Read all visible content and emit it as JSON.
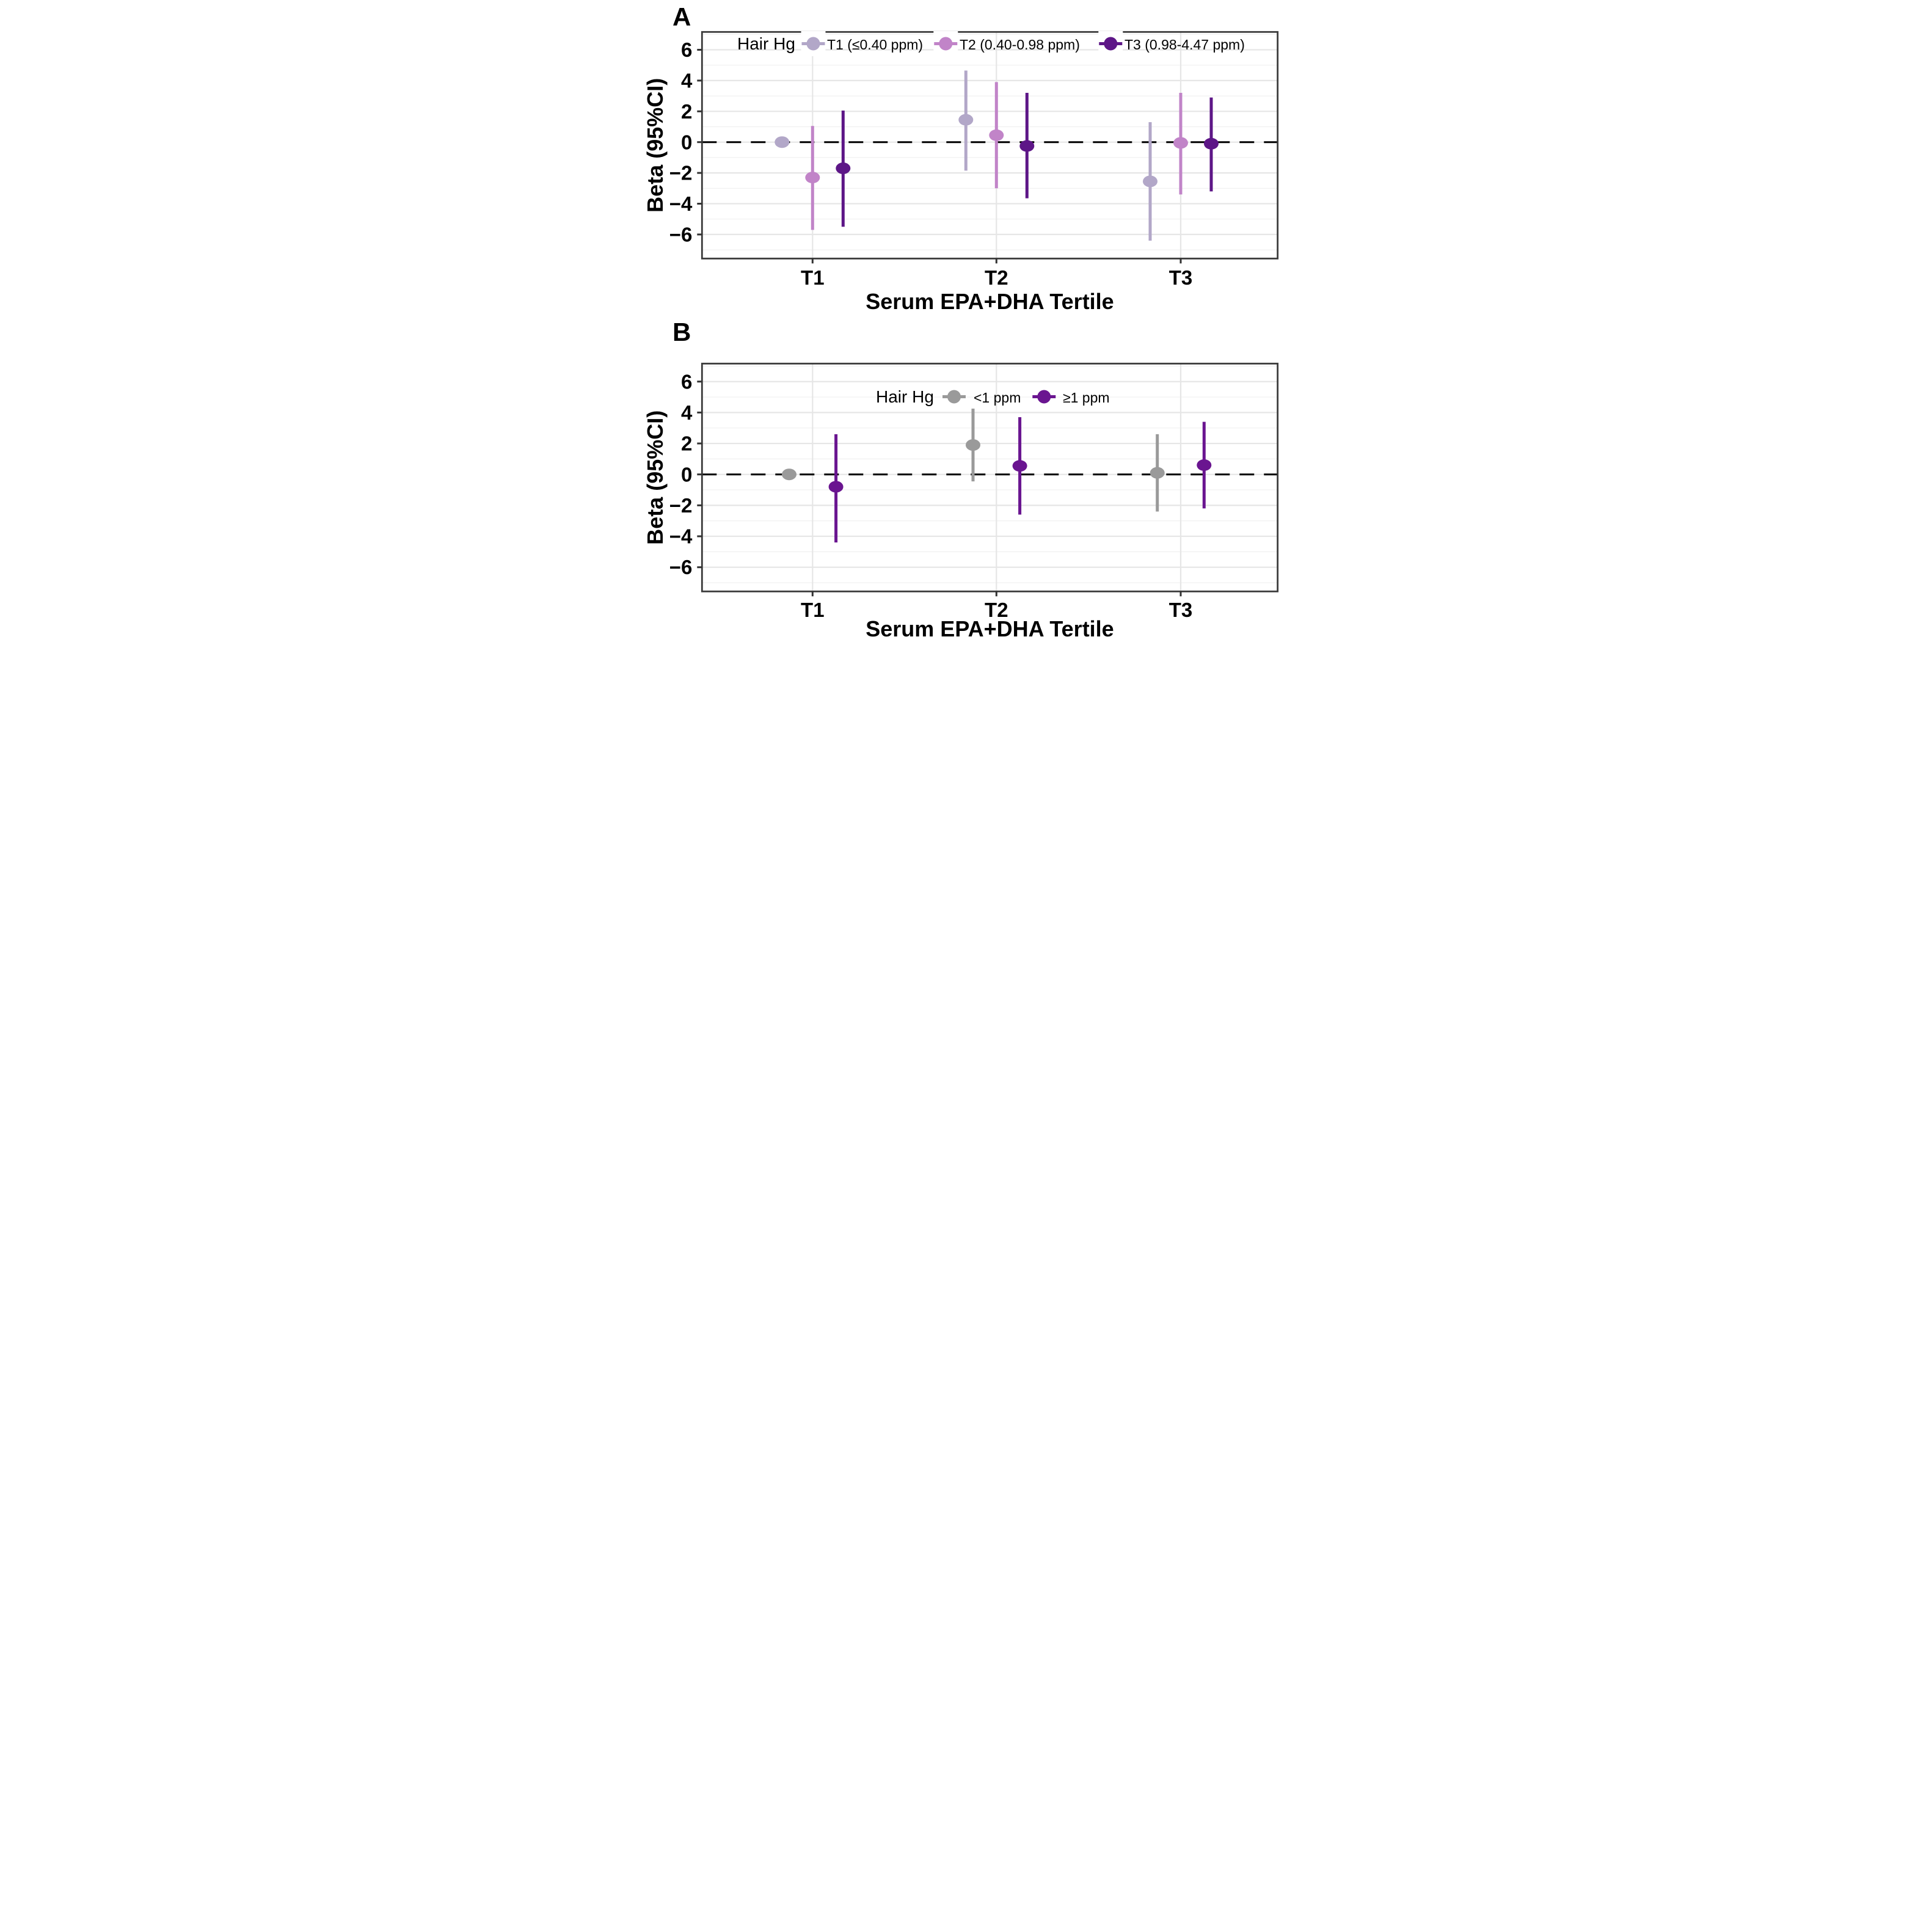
{
  "figure": {
    "description": "Two-panel forest plot of beta coefficients with 95% confidence intervals by serum EPA+DHA tertile and hair mercury category",
    "background": "#ffffff",
    "panel_border_color": "#3b3b3b",
    "grid_color_major": "#e6e6e6",
    "grid_color_minor": "#f0f0f0",
    "zero_line_color": "#000000"
  },
  "chart_data": [
    {
      "type": "scatter",
      "variant": "pointrange-forest",
      "panel_label": "A",
      "legend_title": "Hair Hg",
      "xlabel": "Serum EPA+DHA Tertile",
      "ylabel": "Beta (95%CI)",
      "categories": [
        "T1",
        "T2",
        "T3"
      ],
      "yticks": [
        6,
        4,
        2,
        0,
        -2,
        -4,
        -6
      ],
      "ylim": [
        -7.56,
        7.16
      ],
      "refline": 0,
      "grid": true,
      "legend_position": "top-inside",
      "series": [
        {
          "name": "T1 (≤0.40 ppm)",
          "color": "#b2a7c8",
          "points": [
            {
              "x": "T1",
              "beta": 0.0,
              "lo": null,
              "hi": null
            },
            {
              "x": "T2",
              "beta": 1.45,
              "lo": -1.85,
              "hi": 4.65
            },
            {
              "x": "T3",
              "beta": -2.55,
              "lo": -6.4,
              "hi": 1.3
            }
          ]
        },
        {
          "name": "T2 (0.40-0.98 ppm)",
          "color": "#c184c8",
          "points": [
            {
              "x": "T1",
              "beta": -2.3,
              "lo": -5.7,
              "hi": 1.05
            },
            {
              "x": "T2",
              "beta": 0.45,
              "lo": -3.0,
              "hi": 3.9
            },
            {
              "x": "T3",
              "beta": -0.05,
              "lo": -3.4,
              "hi": 3.2
            }
          ]
        },
        {
          "name": "T3 (0.98-4.47 ppm)",
          "color": "#5d1687",
          "points": [
            {
              "x": "T1",
              "beta": -1.7,
              "lo": -5.5,
              "hi": 2.05
            },
            {
              "x": "T2",
              "beta": -0.25,
              "lo": -3.65,
              "hi": 3.2
            },
            {
              "x": "T3",
              "beta": -0.1,
              "lo": -3.2,
              "hi": 2.9
            }
          ]
        }
      ]
    },
    {
      "type": "scatter",
      "variant": "pointrange-forest",
      "panel_label": "B",
      "legend_title": "Hair Hg",
      "xlabel": "Serum EPA+DHA Tertile",
      "ylabel": "Beta (95%CI)",
      "categories": [
        "T1",
        "T2",
        "T3"
      ],
      "yticks": [
        6,
        4,
        2,
        0,
        -2,
        -4,
        -6
      ],
      "ylim": [
        -7.56,
        7.16
      ],
      "refline": 0,
      "grid": true,
      "legend_position": "top-inside",
      "series": [
        {
          "name": "<1 ppm",
          "color": "#9a9a9a",
          "points": [
            {
              "x": "T1",
              "beta": 0.0,
              "lo": null,
              "hi": null
            },
            {
              "x": "T2",
              "beta": 1.9,
              "lo": -0.45,
              "hi": 4.25
            },
            {
              "x": "T3",
              "beta": 0.1,
              "lo": -2.4,
              "hi": 2.6
            }
          ]
        },
        {
          "name": "≥1 ppm",
          "color": "#6a1590",
          "points": [
            {
              "x": "T1",
              "beta": -0.8,
              "lo": -4.4,
              "hi": 2.6
            },
            {
              "x": "T2",
              "beta": 0.55,
              "lo": -2.6,
              "hi": 3.7
            },
            {
              "x": "T3",
              "beta": 0.6,
              "lo": -2.2,
              "hi": 3.4
            }
          ]
        }
      ]
    }
  ]
}
